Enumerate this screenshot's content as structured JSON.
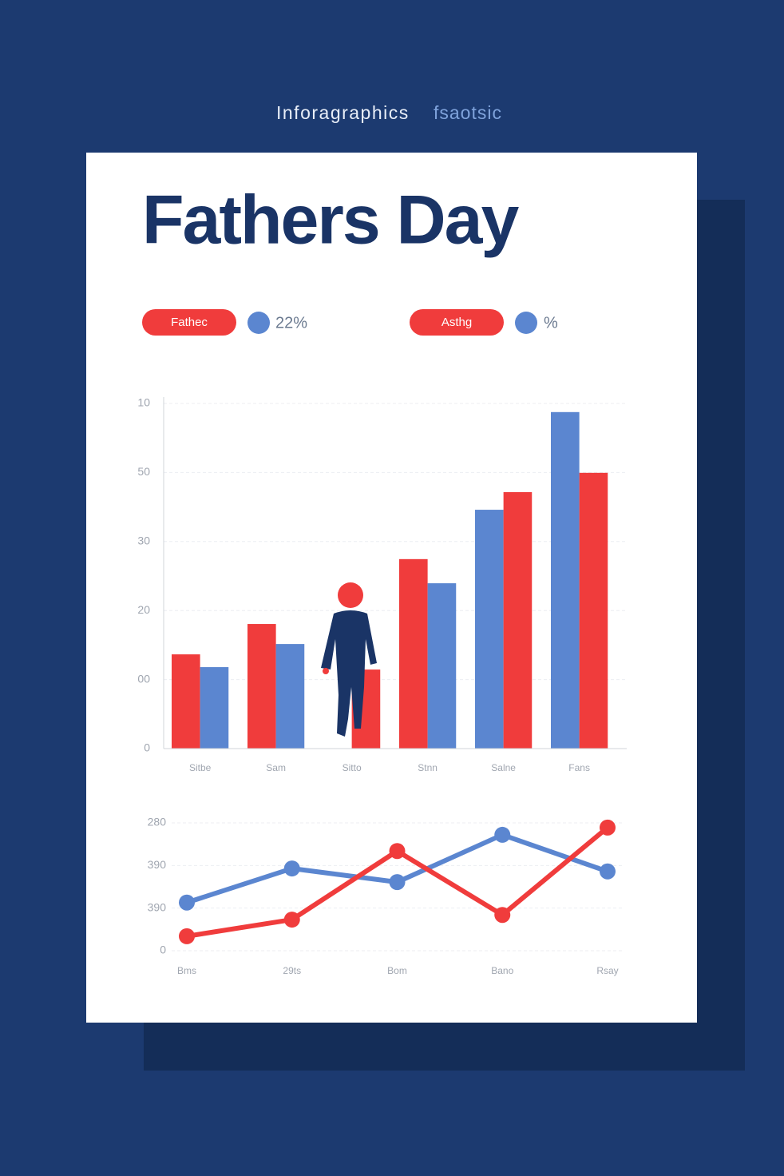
{
  "header": {
    "kicker": "Inforagraphics",
    "kicker_accent": "fsaotsic",
    "title": "Fathers Day"
  },
  "legend": [
    {
      "label": "Fathec",
      "value": "22%"
    },
    {
      "label": "Asthg",
      "value": "%"
    }
  ],
  "chart_data": [
    {
      "type": "bar",
      "categories": [
        "Sitbe",
        "Sam",
        "Sitto",
        "Stnn",
        "Salne",
        "Fans"
      ],
      "series": [
        {
          "colors": [
            "#f03c3c",
            "#f03c3c",
            null,
            "#f03c3c",
            "#5b86d0",
            "#5b86d0"
          ],
          "values": [
            27.3,
            36.1,
            null,
            54.9,
            69.2,
            97.5
          ]
        },
        {
          "colors": [
            "#5b86d0",
            "#5b86d0",
            "#f03c3c",
            "#5b86d0",
            "#f03c3c",
            "#f03c3c"
          ],
          "values": [
            23.6,
            30.3,
            22.9,
            47.9,
            74.3,
            79.9
          ]
        }
      ],
      "ylim": [
        0,
        100
      ],
      "yticks": [
        0,
        {
          "value": 20,
          "label": "00"
        },
        {
          "value": 40,
          "label": "20"
        },
        {
          "value": 60,
          "label": "30"
        },
        {
          "value": 80,
          "label": "50"
        },
        {
          "value": 100,
          "label": "10"
        }
      ],
      "grid": true
    },
    {
      "type": "line",
      "categories": [
        "Bms",
        "29ts",
        "Bom",
        "Bano",
        "Rsay"
      ],
      "series": [
        {
          "color": "#5b86d0",
          "values": [
            1.13,
            1.93,
            1.61,
            2.72,
            1.86
          ]
        },
        {
          "color": "#f03c3c",
          "values": [
            0.34,
            0.73,
            2.34,
            0.84,
            2.89
          ]
        }
      ],
      "ylim": [
        0,
        3
      ],
      "yticks": [
        0,
        {
          "value": 1,
          "label": "390"
        },
        {
          "value": 2,
          "label": "390"
        },
        {
          "value": 3,
          "label": "280"
        }
      ],
      "grid": true
    }
  ]
}
